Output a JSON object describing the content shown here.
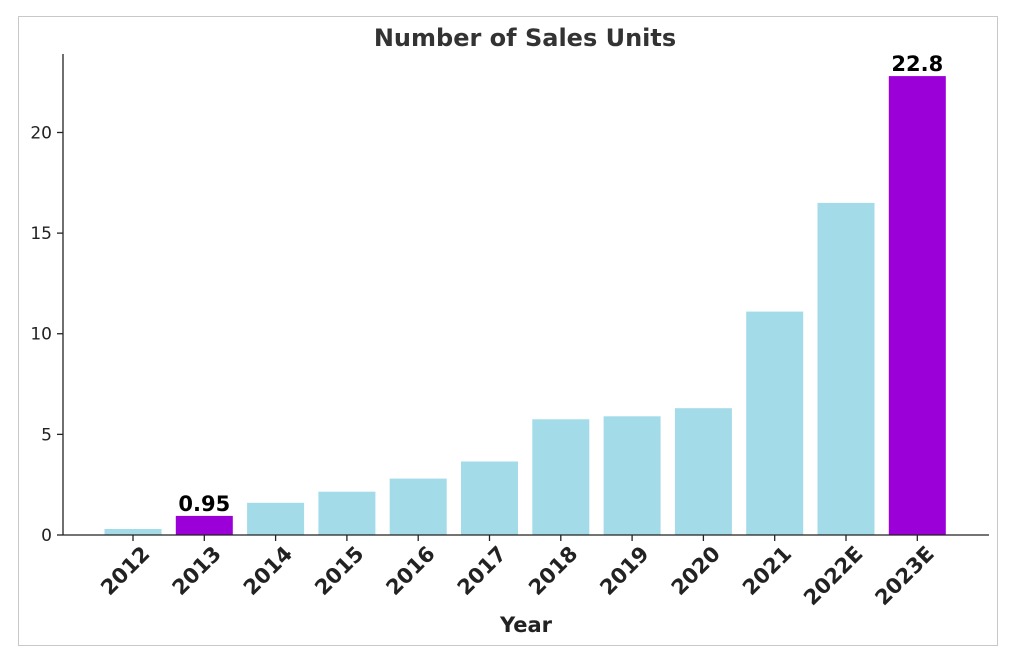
{
  "chart_data": {
    "type": "bar",
    "title": "Number of Sales Units",
    "xlabel": "Year",
    "ylabel": "",
    "categories": [
      "2012",
      "2013",
      "2014",
      "2015",
      "2016",
      "2017",
      "2018",
      "2019",
      "2020",
      "2021",
      "2022E",
      "2023E"
    ],
    "values": [
      0.3,
      0.95,
      1.6,
      2.15,
      2.8,
      3.65,
      5.75,
      5.9,
      6.3,
      11.1,
      16.5,
      22.8
    ],
    "highlighted": [
      "2013",
      "2023E"
    ],
    "data_labels": [
      {
        "category": "2013",
        "text": "0.95"
      },
      {
        "category": "2023E",
        "text": "22.8"
      }
    ],
    "yticks": [
      0,
      5,
      10,
      15,
      20
    ],
    "ylim": [
      0,
      23.9
    ],
    "grid": false,
    "legend": "none",
    "colors": {
      "default": "#a3dbe8",
      "highlight": "#9b00d8",
      "axis": "#222222",
      "title": "#333333"
    }
  }
}
